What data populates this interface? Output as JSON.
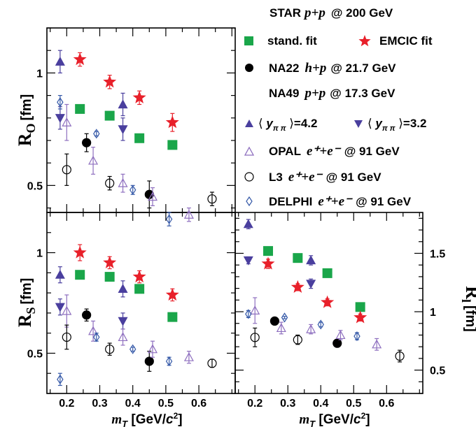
{
  "chart_data": [
    {
      "type": "scatter",
      "panel": "top-left",
      "ylabel": "R_O [fm]",
      "ylabel_main": "R",
      "ylabel_sub": "O",
      "ylabel_unit": "[fm]",
      "xlim": [
        0.14,
        0.71
      ],
      "ylim": [
        0.38,
        1.2
      ],
      "yticks": [
        {
          "v": 0.5,
          "label": "0.5"
        },
        {
          "v": 1.0,
          "label": "1"
        }
      ],
      "series": [
        {
          "key": "star_std",
          "x": [
            0.24,
            0.33,
            0.42,
            0.52
          ],
          "y": [
            0.84,
            0.81,
            0.71,
            0.68
          ],
          "err": [
            0,
            0,
            0,
            0
          ]
        },
        {
          "key": "star_emcic",
          "x": [
            0.24,
            0.33,
            0.42,
            0.52
          ],
          "y": [
            1.06,
            0.96,
            0.89,
            0.78
          ],
          "err": [
            0.03,
            0.03,
            0.03,
            0.04
          ]
        },
        {
          "key": "na22",
          "x": [
            0.26,
            0.45
          ],
          "y": [
            0.69,
            0.46
          ],
          "err": [
            0.04,
            0.06
          ]
        },
        {
          "key": "na49_up",
          "x": [
            0.18,
            0.37
          ],
          "y": [
            1.05,
            0.86
          ],
          "err": [
            0.05,
            0.05
          ]
        },
        {
          "key": "na49_down",
          "x": [
            0.18,
            0.37
          ],
          "y": [
            0.8,
            0.75
          ],
          "err": [
            0.05,
            0.05
          ]
        },
        {
          "key": "opal",
          "x": [
            0.2,
            0.28,
            0.37,
            0.46,
            0.57
          ],
          "y": [
            0.78,
            0.61,
            0.51,
            0.45,
            0.37
          ],
          "err": [
            0.08,
            0.06,
            0.04,
            0.04,
            0.03
          ]
        },
        {
          "key": "l3",
          "x": [
            0.2,
            0.33,
            0.64
          ],
          "y": [
            0.57,
            0.51,
            0.44
          ],
          "err": [
            0.07,
            0.03,
            0.03
          ]
        },
        {
          "key": "delphi",
          "x": [
            0.18,
            0.29,
            0.4,
            0.51
          ],
          "y": [
            0.87,
            0.73,
            0.48,
            0.35
          ],
          "err": [
            0.03,
            0.01,
            0.02,
            0.03
          ]
        }
      ]
    },
    {
      "type": "scatter",
      "panel": "bottom-left",
      "ylabel": "R_S [fm]",
      "ylabel_main": "R",
      "ylabel_sub": "S",
      "ylabel_unit": "[fm]",
      "xlabel": "m_T [GeV/c^2]",
      "xlim": [
        0.14,
        0.71
      ],
      "ylim": [
        0.3,
        1.2
      ],
      "yticks": [
        {
          "v": 0.5,
          "label": "0.5"
        },
        {
          "v": 1.0,
          "label": "1"
        }
      ],
      "xticks": [
        {
          "v": 0.2,
          "label": "0.2"
        },
        {
          "v": 0.3,
          "label": "0.3"
        },
        {
          "v": 0.4,
          "label": "0.4"
        },
        {
          "v": 0.5,
          "label": "0.5"
        },
        {
          "v": 0.6,
          "label": "0.6"
        }
      ],
      "series": [
        {
          "key": "star_std",
          "x": [
            0.24,
            0.33,
            0.42,
            0.52
          ],
          "y": [
            0.89,
            0.88,
            0.82,
            0.68
          ],
          "err": [
            0,
            0,
            0,
            0
          ]
        },
        {
          "key": "star_emcic",
          "x": [
            0.24,
            0.33,
            0.42,
            0.52
          ],
          "y": [
            1.0,
            0.95,
            0.88,
            0.79
          ],
          "err": [
            0.04,
            0.03,
            0.03,
            0.03
          ]
        },
        {
          "key": "na22",
          "x": [
            0.26,
            0.45
          ],
          "y": [
            0.69,
            0.46
          ],
          "err": [
            0.03,
            0.05
          ]
        },
        {
          "key": "na49_up",
          "x": [
            0.18,
            0.37
          ],
          "y": [
            0.89,
            0.82
          ],
          "err": [
            0.04,
            0.04
          ]
        },
        {
          "key": "na49_down",
          "x": [
            0.18,
            0.37
          ],
          "y": [
            0.73,
            0.66
          ],
          "err": [
            0.04,
            0.04
          ]
        },
        {
          "key": "opal",
          "x": [
            0.2,
            0.28,
            0.37,
            0.46,
            0.57
          ],
          "y": [
            0.71,
            0.61,
            0.58,
            0.52,
            0.48
          ],
          "err": [
            0.08,
            0.05,
            0.04,
            0.04,
            0.03
          ]
        },
        {
          "key": "l3",
          "x": [
            0.2,
            0.33,
            0.64
          ],
          "y": [
            0.58,
            0.52,
            0.45
          ],
          "err": [
            0.06,
            0.03,
            0.02
          ]
        },
        {
          "key": "delphi",
          "x": [
            0.18,
            0.29,
            0.4,
            0.51
          ],
          "y": [
            0.37,
            0.58,
            0.52,
            0.46
          ],
          "err": [
            0.03,
            0.02,
            0.01,
            0.02
          ]
        }
      ]
    },
    {
      "type": "scatter",
      "panel": "bottom-right",
      "ylabel": "R_l [fm]",
      "ylabel_main": "R",
      "ylabel_sub": "l",
      "ylabel_unit": "[fm]",
      "xlabel": "m_T [GeV/c^2]",
      "xlim": [
        0.14,
        0.71
      ],
      "ylim": [
        0.3,
        1.85
      ],
      "yticks": [
        {
          "v": 0.5,
          "label": "0.5"
        },
        {
          "v": 1.0,
          "label": "1"
        },
        {
          "v": 1.5,
          "label": "1.5"
        }
      ],
      "xticks": [
        {
          "v": 0.2,
          "label": "0.2"
        },
        {
          "v": 0.3,
          "label": "0.3"
        },
        {
          "v": 0.4,
          "label": "0.4"
        },
        {
          "v": 0.5,
          "label": "0.5"
        },
        {
          "v": 0.6,
          "label": "0.6"
        }
      ],
      "series": [
        {
          "key": "star_std",
          "x": [
            0.24,
            0.33,
            0.42,
            0.52
          ],
          "y": [
            1.52,
            1.46,
            1.33,
            1.04
          ],
          "err": [
            0,
            0,
            0,
            0
          ]
        },
        {
          "key": "star_emcic",
          "x": [
            0.24,
            0.33,
            0.42,
            0.52
          ],
          "y": [
            1.41,
            1.21,
            1.08,
            0.95
          ],
          "err": [
            0.04,
            0.03,
            0.03,
            0.03
          ]
        },
        {
          "key": "na22",
          "x": [
            0.26,
            0.45
          ],
          "y": [
            0.92,
            0.73
          ],
          "err": [
            0.03,
            0.01
          ]
        },
        {
          "key": "na49_up",
          "x": [
            0.18,
            0.37
          ],
          "y": [
            1.75,
            1.44
          ],
          "err": [
            0.04,
            0.04
          ]
        },
        {
          "key": "na49_down",
          "x": [
            0.18,
            0.37
          ],
          "y": [
            1.44,
            1.24
          ],
          "err": [
            0.03,
            0.04
          ]
        },
        {
          "key": "opal",
          "x": [
            0.2,
            0.28,
            0.37,
            0.46,
            0.57
          ],
          "y": [
            1.01,
            0.86,
            0.85,
            0.8,
            0.72
          ],
          "err": [
            0.11,
            0.05,
            0.04,
            0.04,
            0.05
          ]
        },
        {
          "key": "l3",
          "x": [
            0.2,
            0.33,
            0.64
          ],
          "y": [
            0.78,
            0.76,
            0.62
          ],
          "err": [
            0.08,
            0.04,
            0.05
          ]
        },
        {
          "key": "delphi",
          "x": [
            0.18,
            0.29,
            0.4,
            0.51
          ],
          "y": [
            0.98,
            0.95,
            0.89,
            0.79
          ],
          "err": [
            0.03,
            0.01,
            0.02,
            0.03
          ]
        }
      ]
    }
  ],
  "legend": {
    "title": "STAR",
    "title_reaction": "p+p",
    "title_energy": "@ 200 GeV",
    "star_std_label": "stand. fit",
    "star_emcic_label": "EMCIC fit",
    "na22_name": "NA22",
    "na22_reaction": "h+p",
    "na22_energy": "@ 21.7 GeV",
    "na49_name": "NA49",
    "na49_reaction": "p+p",
    "na49_energy": "@ 17.3 GeV",
    "na49_up_label": "y",
    "na49_up_sub": "π π",
    "na49_up_value": "=4.2",
    "na49_down_value": "=3.2",
    "opal_name": "OPAL",
    "opal_reaction": "e⁺+e⁻",
    "opal_energy": "@ 91 GeV",
    "l3_name": "L3",
    "l3_reaction": "e⁺+e⁻",
    "l3_energy": "@ 91 GeV",
    "delphi_name": "DELPHI",
    "delphi_reaction": "e⁺+e⁻",
    "delphi_energy": "@ 91 GeV"
  },
  "colors": {
    "star_std": "#1aa64a",
    "star_emcic": "#e8202a",
    "na22": "#000000",
    "na49": "#4a3f9e",
    "opal": "#8e6fbf",
    "l3": "#000000",
    "delphi": "#3559a8"
  }
}
